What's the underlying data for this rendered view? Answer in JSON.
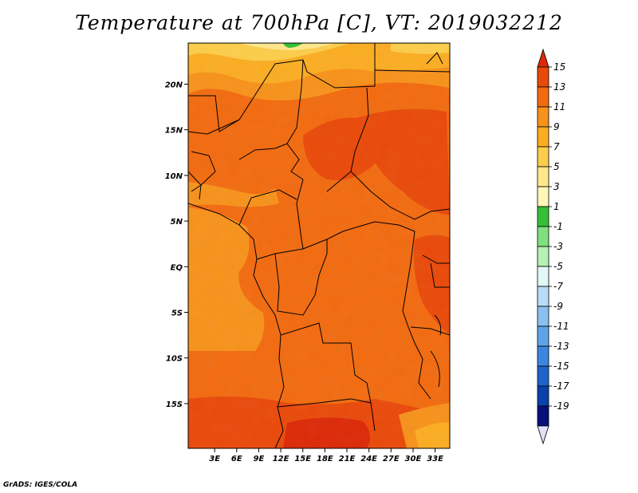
{
  "title": "Temperature at 700hPa [C], VT: 2019032212",
  "footer": "GrADS: IGES/COLA",
  "map": {
    "lat_ticks": [
      {
        "label": "20N",
        "value": 20
      },
      {
        "label": "15N",
        "value": 15
      },
      {
        "label": "10N",
        "value": 10
      },
      {
        "label": "5N",
        "value": 5
      },
      {
        "label": "EQ",
        "value": 0
      },
      {
        "label": "5S",
        "value": -5
      },
      {
        "label": "10S",
        "value": -10
      },
      {
        "label": "15S",
        "value": -15
      }
    ],
    "lon_ticks": [
      {
        "label": "3E",
        "value": 3
      },
      {
        "label": "6E",
        "value": 6
      },
      {
        "label": "9E",
        "value": 9
      },
      {
        "label": "12E",
        "value": 12
      },
      {
        "label": "15E",
        "value": 15
      },
      {
        "label": "18E",
        "value": 18
      },
      {
        "label": "21E",
        "value": 21
      },
      {
        "label": "24E",
        "value": 24
      },
      {
        "label": "27E",
        "value": 27
      },
      {
        "label": "30E",
        "value": 30
      },
      {
        "label": "33E",
        "value": 33
      }
    ]
  },
  "colorbar": {
    "labels": [
      "15",
      "13",
      "11",
      "9",
      "7",
      "5",
      "3",
      "1",
      "-1",
      "-3",
      "-5",
      "-7",
      "-9",
      "-11",
      "-13",
      "-15",
      "-17",
      "-19"
    ],
    "colors": [
      "#dc2a08",
      "#e94a0a",
      "#f26b10",
      "#f7921b",
      "#fbad22",
      "#fccd4a",
      "#fee88a",
      "#fdf6b6",
      "#36be36",
      "#7ee07e",
      "#b5f0b5",
      "#e2f8f8",
      "#b9ddf6",
      "#8ac0ef",
      "#5ea3e8",
      "#3c86df",
      "#1d63cb",
      "#0b41aa",
      "#08117a",
      "#e0e0f8"
    ]
  }
}
